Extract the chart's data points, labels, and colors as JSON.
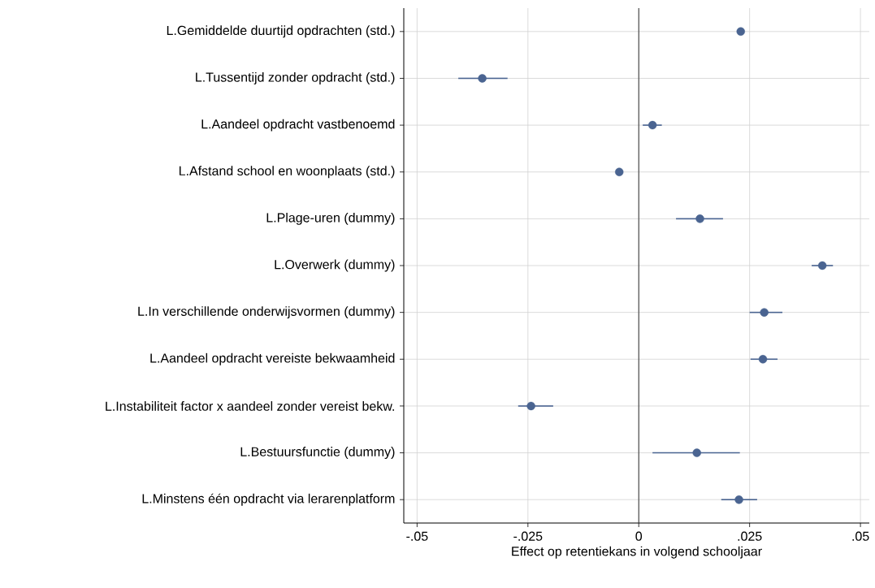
{
  "chart_data": {
    "type": "scatter",
    "orientation": "horizontal",
    "xlabel": "Effect op retentiekans in volgend schooljaar",
    "categories": [
      "L.Gemiddelde duurtijd opdrachten (std.)",
      "L.Tussentijd zonder opdracht (std.)",
      "L.Aandeel opdracht vastbenoemd",
      "L.Afstand school en woonplaats (std.)",
      "L.Plage-uren (dummy)",
      "L.Overwerk (dummy)",
      "L.In verschillende onderwijsvormen (dummy)",
      "L.Aandeel opdracht vereiste bekwaamheid",
      "L.Instabiliteit factor x aandeel zonder vereist bekw.",
      "L.Bestuursfunctie (dummy)",
      "L.Minstens één opdracht via lerarenplatform"
    ],
    "values": [
      0.023,
      -0.0353,
      0.0031,
      -0.0044,
      0.0138,
      0.0414,
      0.0283,
      0.028,
      -0.0243,
      0.0131,
      0.0226
    ],
    "errors": [
      null,
      [
        -0.0407,
        -0.0296
      ],
      [
        0.0009,
        0.0052
      ],
      null,
      [
        0.0084,
        0.019
      ],
      [
        0.039,
        0.0438
      ],
      [
        0.025,
        0.0324
      ],
      [
        0.0252,
        0.0313
      ],
      [
        -0.0272,
        -0.0193
      ],
      [
        0.0031,
        0.0228
      ],
      [
        0.0186,
        0.0267
      ]
    ],
    "color": "#4a6491",
    "marker": "circle",
    "grid": true,
    "xlim": [
      -0.053,
      0.052
    ],
    "xticks": [
      {
        "value": -0.05,
        "label": "-.05"
      },
      {
        "value": -0.025,
        "label": "-.025"
      },
      0,
      {
        "value": 0.025,
        "label": ".025"
      },
      {
        "value": 0.05,
        "label": ".05"
      }
    ],
    "ref_lines": [
      {
        "axis": "x",
        "value": 0,
        "color": "#333333"
      }
    ]
  }
}
